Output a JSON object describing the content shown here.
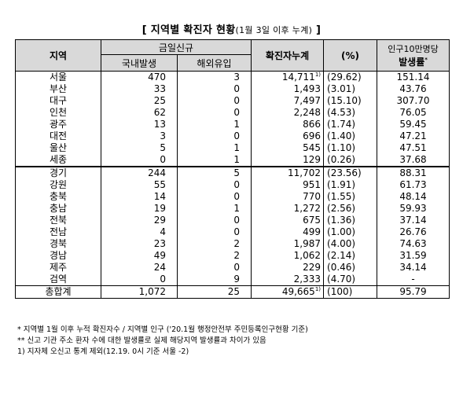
{
  "title": {
    "main": "[ 지역별 확진자 현황",
    "sub": "(1월 3일 이후 누계)",
    "end": " ]"
  },
  "headers": {
    "region": "지역",
    "today_new": "금일신규",
    "domestic": "국내발생",
    "overseas": "해외유입",
    "cumulative": "확진자누계",
    "percent": "(%)",
    "rate_top": "인구10만명당",
    "rate_bottom": "발생률",
    "rate_mark": "*"
  },
  "rows": [
    {
      "region": "서울",
      "domestic": "470",
      "overseas": "3",
      "cumulative": "14,711",
      "mark": "1)",
      "percent": "(29.62)",
      "rate": "151.14"
    },
    {
      "region": "부산",
      "domestic": "33",
      "overseas": "0",
      "cumulative": "1,493",
      "mark": "",
      "percent": "(3.01)",
      "rate": "43.76"
    },
    {
      "region": "대구",
      "domestic": "25",
      "overseas": "0",
      "cumulative": "7,497",
      "mark": "",
      "percent": "(15.10)",
      "rate": "307.70"
    },
    {
      "region": "인천",
      "domestic": "62",
      "overseas": "0",
      "cumulative": "2,248",
      "mark": "",
      "percent": "(4.53)",
      "rate": "76.05"
    },
    {
      "region": "광주",
      "domestic": "13",
      "overseas": "1",
      "cumulative": "866",
      "mark": "",
      "percent": "(1.74)",
      "rate": "59.45"
    },
    {
      "region": "대전",
      "domestic": "3",
      "overseas": "0",
      "cumulative": "696",
      "mark": "",
      "percent": "(1.40)",
      "rate": "47.21"
    },
    {
      "region": "울산",
      "domestic": "5",
      "overseas": "1",
      "cumulative": "545",
      "mark": "",
      "percent": "(1.10)",
      "rate": "47.51"
    },
    {
      "region": "세종",
      "domestic": "0",
      "overseas": "1",
      "cumulative": "129",
      "mark": "",
      "percent": "(0.26)",
      "rate": "37.68"
    },
    {
      "region": "경기",
      "domestic": "244",
      "overseas": "5",
      "cumulative": "11,702",
      "mark": "",
      "percent": "(23.56)",
      "rate": "88.31"
    },
    {
      "region": "강원",
      "domestic": "55",
      "overseas": "0",
      "cumulative": "951",
      "mark": "",
      "percent": "(1.91)",
      "rate": "61.73"
    },
    {
      "region": "충북",
      "domestic": "14",
      "overseas": "0",
      "cumulative": "770",
      "mark": "",
      "percent": "(1.55)",
      "rate": "48.14"
    },
    {
      "region": "충남",
      "domestic": "19",
      "overseas": "1",
      "cumulative": "1,272",
      "mark": "",
      "percent": "(2.56)",
      "rate": "59.93"
    },
    {
      "region": "전북",
      "domestic": "29",
      "overseas": "0",
      "cumulative": "675",
      "mark": "",
      "percent": "(1.36)",
      "rate": "37.14"
    },
    {
      "region": "전남",
      "domestic": "4",
      "overseas": "0",
      "cumulative": "499",
      "mark": "",
      "percent": "(1.00)",
      "rate": "26.76"
    },
    {
      "region": "경북",
      "domestic": "23",
      "overseas": "2",
      "cumulative": "1,987",
      "mark": "",
      "percent": "(4.00)",
      "rate": "74.63"
    },
    {
      "region": "경남",
      "domestic": "49",
      "overseas": "2",
      "cumulative": "1,062",
      "mark": "",
      "percent": "(2.14)",
      "rate": "31.59"
    },
    {
      "region": "제주",
      "domestic": "24",
      "overseas": "0",
      "cumulative": "229",
      "mark": "",
      "percent": "(0.46)",
      "rate": "34.14"
    },
    {
      "region": "검역",
      "domestic": "0",
      "overseas": "9",
      "cumulative": "2,333",
      "mark": "",
      "percent": "(4.70)",
      "rate": "-"
    }
  ],
  "total": {
    "region": "총합계",
    "domestic": "1,072",
    "overseas": "25",
    "cumulative": "49,665",
    "mark": "1)",
    "percent": "(100)",
    "rate": "95.79"
  },
  "footnotes": [
    "* 지역별 1월 이후 누적 확진자수 / 지역별 인구 ('20.1월 행정안전부 주민등록인구현황 기준)",
    "** 신고 기관 주소 환자 수에 대한 발생률로 실제 해당지역 발생률과 차이가 있음",
    "1) 지자체 오신고 통계 제외(12.19. 0시 기준 서울 -2)"
  ]
}
